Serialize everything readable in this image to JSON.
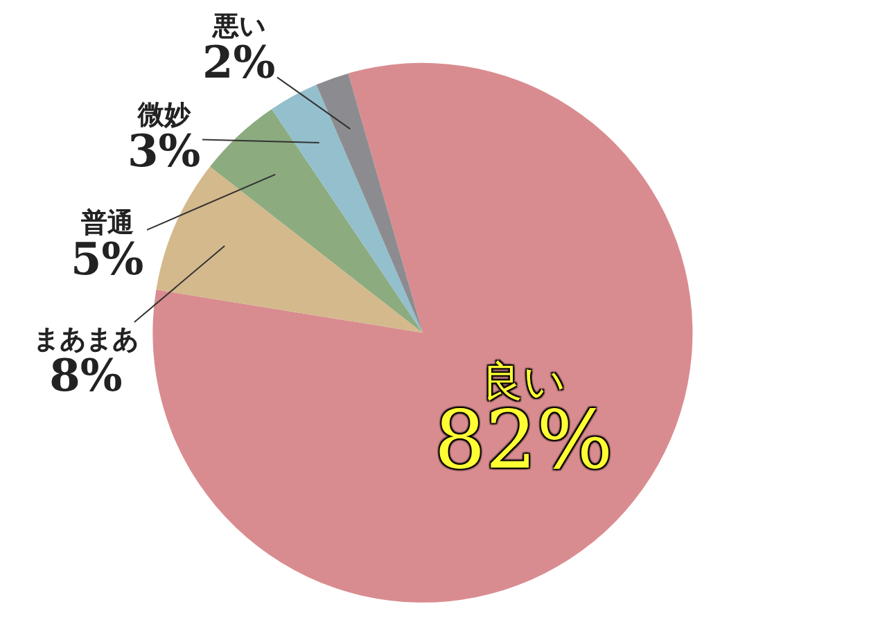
{
  "chart_data": {
    "type": "pie",
    "categories": [
      "良い",
      "まあまあ",
      "普通",
      "微妙",
      "悪い"
    ],
    "values": [
      82,
      8,
      5,
      3,
      2
    ],
    "value_labels": [
      "82%",
      "8%",
      "5%",
      "3%",
      "2%"
    ],
    "colors": [
      "#d98c8f",
      "#d4b98c",
      "#8cab7f",
      "#94bfcc",
      "#8c8c90"
    ],
    "legend": false
  }
}
